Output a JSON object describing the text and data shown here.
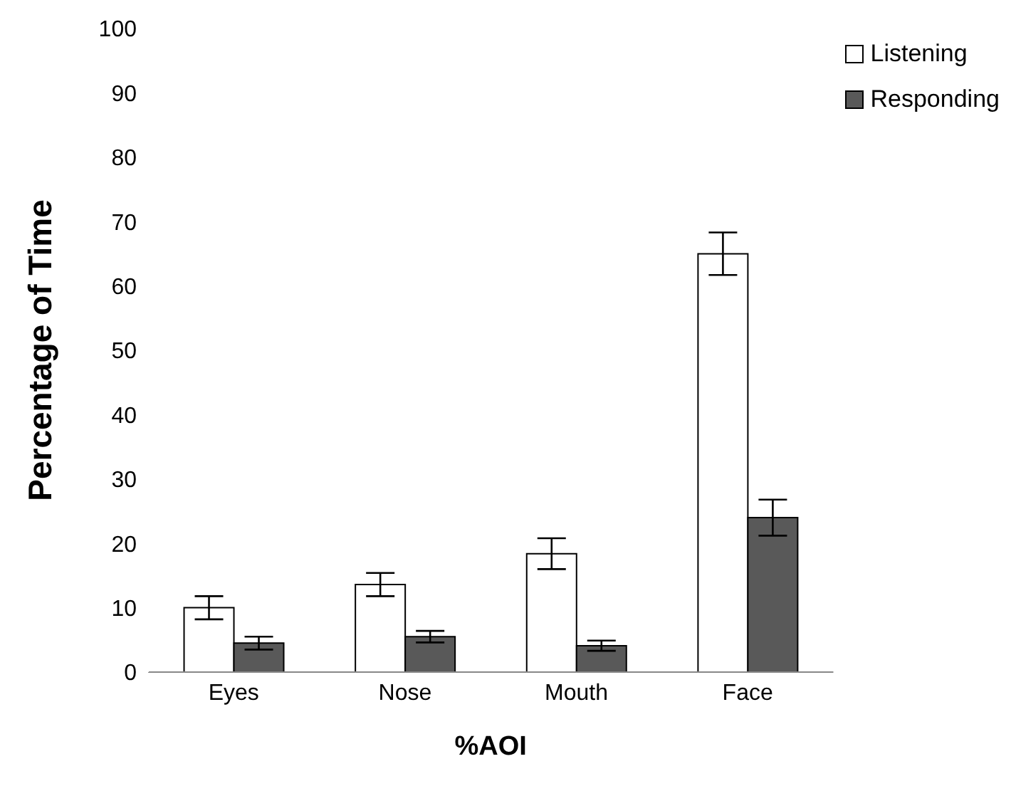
{
  "chart_data": {
    "type": "bar",
    "xlabel": "%AOI",
    "ylabel": "Percentage of Time",
    "categories": [
      "Eyes",
      "Nose",
      "Mouth",
      "Face"
    ],
    "series": [
      {
        "name": "Listening",
        "color": "#ffffff",
        "values": [
          10,
          13.6,
          18.4,
          65
        ],
        "errors": [
          1.8,
          1.8,
          2.4,
          3.3
        ]
      },
      {
        "name": "Responding",
        "color": "#595959",
        "values": [
          4.5,
          5.5,
          4.1,
          24
        ],
        "errors": [
          1,
          0.9,
          0.8,
          2.8
        ]
      }
    ],
    "ylim": [
      0,
      100
    ],
    "yticks": [
      0,
      10,
      20,
      30,
      40,
      50,
      60,
      70,
      80,
      90,
      100
    ],
    "grid": false,
    "legend": "top right"
  }
}
